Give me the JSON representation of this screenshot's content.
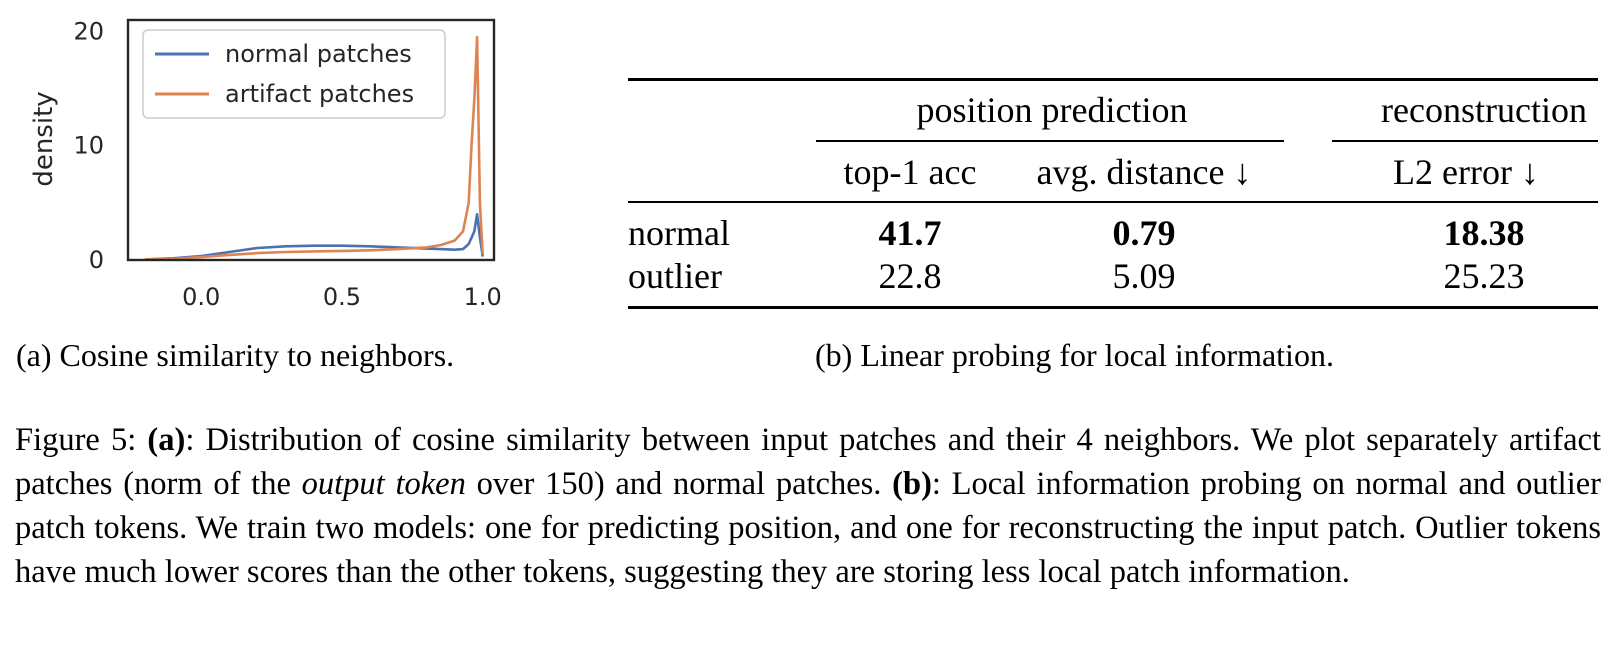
{
  "chart_data": {
    "type": "line",
    "title": "",
    "xlabel": "",
    "ylabel": "density",
    "xlim": [
      -0.26,
      1.04
    ],
    "ylim": [
      0,
      21
    ],
    "x_ticks": [
      "0.0",
      "0.5",
      "1.0"
    ],
    "y_ticks": [
      "0",
      "10",
      "20"
    ],
    "grid": false,
    "legend_position": "top-left",
    "series": [
      {
        "name": "normal patches",
        "color": "#4c72b0",
        "points": [
          [
            -0.2,
            0.05
          ],
          [
            -0.1,
            0.15
          ],
          [
            0.0,
            0.35
          ],
          [
            0.1,
            0.7
          ],
          [
            0.2,
            1.05
          ],
          [
            0.3,
            1.2
          ],
          [
            0.4,
            1.25
          ],
          [
            0.5,
            1.25
          ],
          [
            0.6,
            1.2
          ],
          [
            0.7,
            1.1
          ],
          [
            0.8,
            1.0
          ],
          [
            0.85,
            0.95
          ],
          [
            0.9,
            0.9
          ],
          [
            0.93,
            0.95
          ],
          [
            0.95,
            1.4
          ],
          [
            0.97,
            2.5
          ],
          [
            0.98,
            4.0
          ],
          [
            0.99,
            2.0
          ],
          [
            1.0,
            0.3
          ]
        ]
      },
      {
        "name": "artifact patches",
        "color": "#dd8452",
        "points": [
          [
            -0.2,
            0.05
          ],
          [
            -0.1,
            0.1
          ],
          [
            0.0,
            0.25
          ],
          [
            0.1,
            0.45
          ],
          [
            0.2,
            0.6
          ],
          [
            0.3,
            0.7
          ],
          [
            0.4,
            0.75
          ],
          [
            0.5,
            0.8
          ],
          [
            0.6,
            0.85
          ],
          [
            0.7,
            0.95
          ],
          [
            0.8,
            1.1
          ],
          [
            0.85,
            1.3
          ],
          [
            0.9,
            1.7
          ],
          [
            0.93,
            2.5
          ],
          [
            0.95,
            5.0
          ],
          [
            0.96,
            10.0
          ],
          [
            0.97,
            14.0
          ],
          [
            0.98,
            19.5
          ],
          [
            0.99,
            5.0
          ],
          [
            1.0,
            0.5
          ]
        ]
      }
    ]
  },
  "sub_captions": {
    "a": "(a) Cosine similarity to neighbors.",
    "b": "(b) Linear probing for local information."
  },
  "table": {
    "group_headers": [
      "position prediction",
      "reconstruction"
    ],
    "column_headers": [
      "top-1 acc",
      "avg. distance ↓",
      "L2 error ↓"
    ],
    "rows": [
      {
        "label": "normal",
        "values": [
          "41.7",
          "0.79",
          "18.38"
        ],
        "bold": true
      },
      {
        "label": "outlier",
        "values": [
          "22.8",
          "5.09",
          "25.23"
        ],
        "bold": false
      }
    ]
  },
  "figure_caption": {
    "label": "Figure 5:",
    "a_ref": "(a)",
    "part1": ": Distribution of cosine similarity between input patches and their 4 neighbors. We plot separately artifact patches (norm of the ",
    "emph": "output token",
    "part2": " over 150) and normal patches. ",
    "b_ref": "(b)",
    "part3": ": Local information probing on normal and outlier patch tokens. We train two models: one for predicting position, and one for reconstructing the input patch. Outlier tokens have much lower scores than the other tokens, suggesting they are storing less local patch information."
  }
}
